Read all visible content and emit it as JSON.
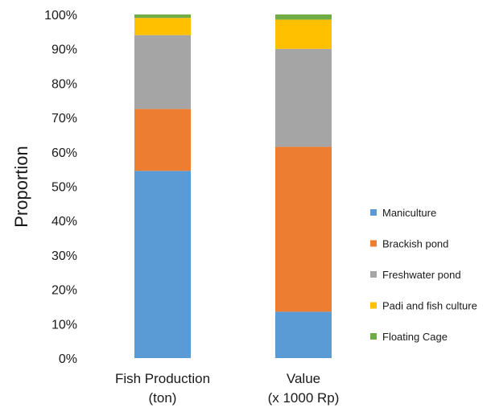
{
  "chart_data": {
    "type": "bar",
    "stacked": true,
    "normalized": true,
    "categories": [
      [
        "Fish Production",
        "(ton)"
      ],
      [
        "Value",
        "(x 1000 Rp)"
      ]
    ],
    "series": [
      {
        "name": "Maniculture",
        "color": "#5b9bd5",
        "values": [
          54.5,
          13.5
        ]
      },
      {
        "name": "Brackish pond",
        "color": "#ed7d31",
        "values": [
          18.0,
          48.0
        ]
      },
      {
        "name": "Freshwater pond",
        "color": "#a5a5a5",
        "values": [
          21.5,
          28.5
        ]
      },
      {
        "name": "Padi and fish culture",
        "color": "#ffc000",
        "values": [
          5.0,
          8.5
        ]
      },
      {
        "name": "Floating Cage",
        "color": "#70ad47",
        "values": [
          1.0,
          1.5
        ]
      }
    ],
    "ylabel": "Proportion",
    "ylim": [
      0,
      100
    ],
    "yticks": [
      "0%",
      "10%",
      "20%",
      "30%",
      "40%",
      "50%",
      "60%",
      "70%",
      "80%",
      "90%",
      "100%"
    ],
    "grid": false,
    "legend": "right"
  }
}
